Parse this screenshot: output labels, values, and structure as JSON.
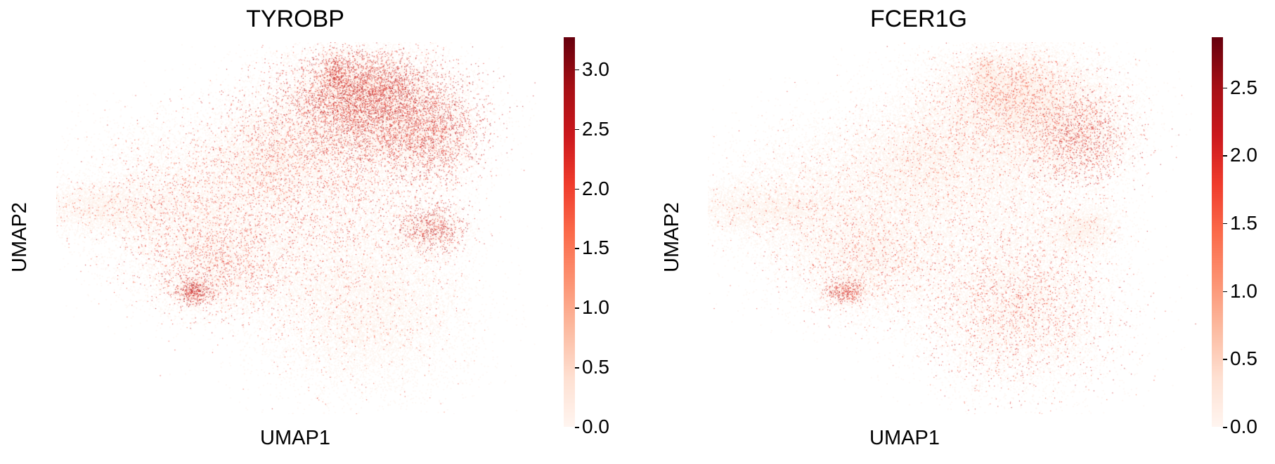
{
  "chart_data": [
    {
      "type": "scatter",
      "title": "TYROBP",
      "xlabel": "UMAP1",
      "ylabel": "UMAP2",
      "colormap": "Reds",
      "colorbar": {
        "range": [
          0.0,
          3.27
        ],
        "ticks": [
          "0.0",
          "0.5",
          "1.0",
          "1.5",
          "2.0",
          "2.5",
          "3.0"
        ],
        "tick_values": [
          0.0,
          0.5,
          1.0,
          1.5,
          2.0,
          2.5,
          3.0
        ]
      },
      "grid": false,
      "axes_frame": false,
      "high_expression_regions": [
        "upper-right lobe",
        "right-side protrusion",
        "right isolated cluster",
        "lower-left tip"
      ]
    },
    {
      "type": "scatter",
      "title": "FCER1G",
      "xlabel": "UMAP1",
      "ylabel": "UMAP2",
      "colormap": "Reds",
      "colorbar": {
        "range": [
          0.0,
          2.87
        ],
        "ticks": [
          "0.0",
          "0.5",
          "1.0",
          "1.5",
          "2.0",
          "2.5"
        ],
        "tick_values": [
          0.0,
          0.5,
          1.0,
          1.5,
          2.0,
          2.5
        ]
      },
      "grid": false,
      "axes_frame": false,
      "high_expression_regions": [
        "right-side protrusion",
        "bottom lobe",
        "lower-left tip"
      ]
    }
  ]
}
